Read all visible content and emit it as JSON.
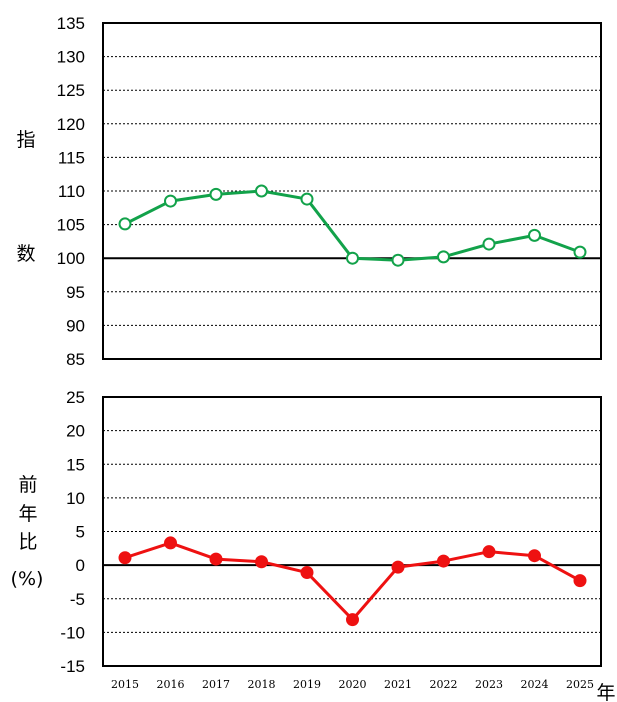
{
  "chart_data": [
    {
      "type": "line",
      "ylabel": [
        "指",
        "数"
      ],
      "ylim": [
        85,
        135
      ],
      "yticks": [
        135,
        130,
        125,
        120,
        115,
        110,
        105,
        100,
        95,
        90,
        85
      ],
      "reference_line": 100,
      "grid": "dashed horizontal",
      "x": [
        "2015",
        "2016",
        "2017",
        "2018",
        "2019",
        "2020",
        "2021",
        "2022",
        "2023",
        "2024",
        "2025"
      ],
      "series": [
        {
          "values": [
            105.1,
            108.5,
            109.5,
            110.0,
            108.8,
            100.0,
            99.7,
            100.2,
            102.1,
            103.4,
            100.9
          ],
          "color": "#12a24a",
          "marker": "open-circle"
        }
      ]
    },
    {
      "type": "line",
      "ylabel": [
        "前",
        "年",
        "比",
        "(%)"
      ],
      "xlabel": "年",
      "ylim": [
        -15,
        25
      ],
      "yticks": [
        25,
        20,
        15,
        10,
        5,
        0,
        -5,
        -10,
        -15
      ],
      "reference_line": 0,
      "grid": "dashed horizontal",
      "x": [
        "2015",
        "2016",
        "2017",
        "2018",
        "2019",
        "2020",
        "2021",
        "2022",
        "2023",
        "2024",
        "2025"
      ],
      "series": [
        {
          "values": [
            1.1,
            3.3,
            0.9,
            0.5,
            -1.1,
            -8.1,
            -0.3,
            0.6,
            2.0,
            1.4,
            -2.3
          ],
          "color": "#ee1111",
          "marker": "filled-circle"
        }
      ]
    }
  ]
}
